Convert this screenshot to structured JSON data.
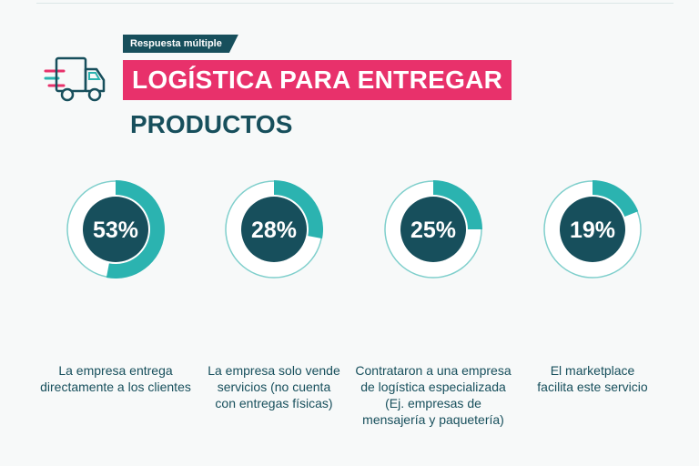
{
  "header": {
    "tag": "Respuesta múltiple",
    "title": "LOGÍSTICA PARA ENTREGAR",
    "subtitle": "PRODUCTOS",
    "icon": "delivery-truck-icon"
  },
  "colors": {
    "dark_teal": "#174f5c",
    "light_teal": "#2bb3b0",
    "pink": "#e8316b",
    "ring_outline": "#7fcfcc",
    "background": "#f7f9f9"
  },
  "chart_data": {
    "type": "pie",
    "series": [
      {
        "value": 53,
        "display": "53%",
        "label": "La empresa entrega directamente a los clientes"
      },
      {
        "value": 28,
        "display": "28%",
        "label": "La empresa solo vende servicios (no cuenta con entregas físicas)"
      },
      {
        "value": 25,
        "display": "25%",
        "label": "Contrataron a una empresa de logística especializada (Ej. empresas de mensajería y paquetería)"
      },
      {
        "value": 19,
        "display": "19%",
        "label": "El marketplace facilita este servicio"
      }
    ]
  }
}
